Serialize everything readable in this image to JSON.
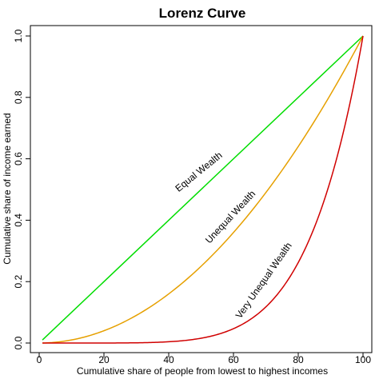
{
  "chart_data": {
    "type": "line",
    "title": "Lorenz Curve",
    "xlabel": "Cumulative share of people from lowest to highest incomes",
    "ylabel": "Cumulative share of income earned",
    "xlim": [
      0,
      100
    ],
    "ylim": [
      0,
      1
    ],
    "x_ticks": [
      "0",
      "20",
      "40",
      "60",
      "80",
      "100"
    ],
    "y_ticks": [
      "0.0",
      "0.2",
      "0.4",
      "0.6",
      "0.8",
      "1.0"
    ],
    "grid": false,
    "legend": "none",
    "series": [
      {
        "name": "Equal Wealth",
        "color": "#00dd00",
        "x": [
          1,
          100
        ],
        "y": [
          0.01,
          1.0
        ]
      },
      {
        "name": "Unequal Wealth",
        "color": "#e6a000",
        "x": [
          1,
          10,
          20,
          30,
          40,
          50,
          60,
          70,
          80,
          90,
          100
        ],
        "y": [
          0.0,
          0.01,
          0.04,
          0.09,
          0.16,
          0.25,
          0.36,
          0.49,
          0.64,
          0.81,
          1.0
        ]
      },
      {
        "name": "Very Unequal Wealth",
        "color": "#d00000",
        "x": [
          1,
          10,
          20,
          30,
          40,
          50,
          60,
          70,
          80,
          90,
          95,
          100
        ],
        "y": [
          0.0,
          0.0,
          0.0,
          0.0,
          0.003,
          0.015,
          0.05,
          0.12,
          0.26,
          0.53,
          0.74,
          1.0
        ]
      }
    ],
    "annotations": [
      {
        "text": "Equal Wealth",
        "series": 0
      },
      {
        "text": "Unequal Wealth",
        "series": 1
      },
      {
        "text": "Very Unequal Wealth",
        "series": 2
      }
    ]
  }
}
